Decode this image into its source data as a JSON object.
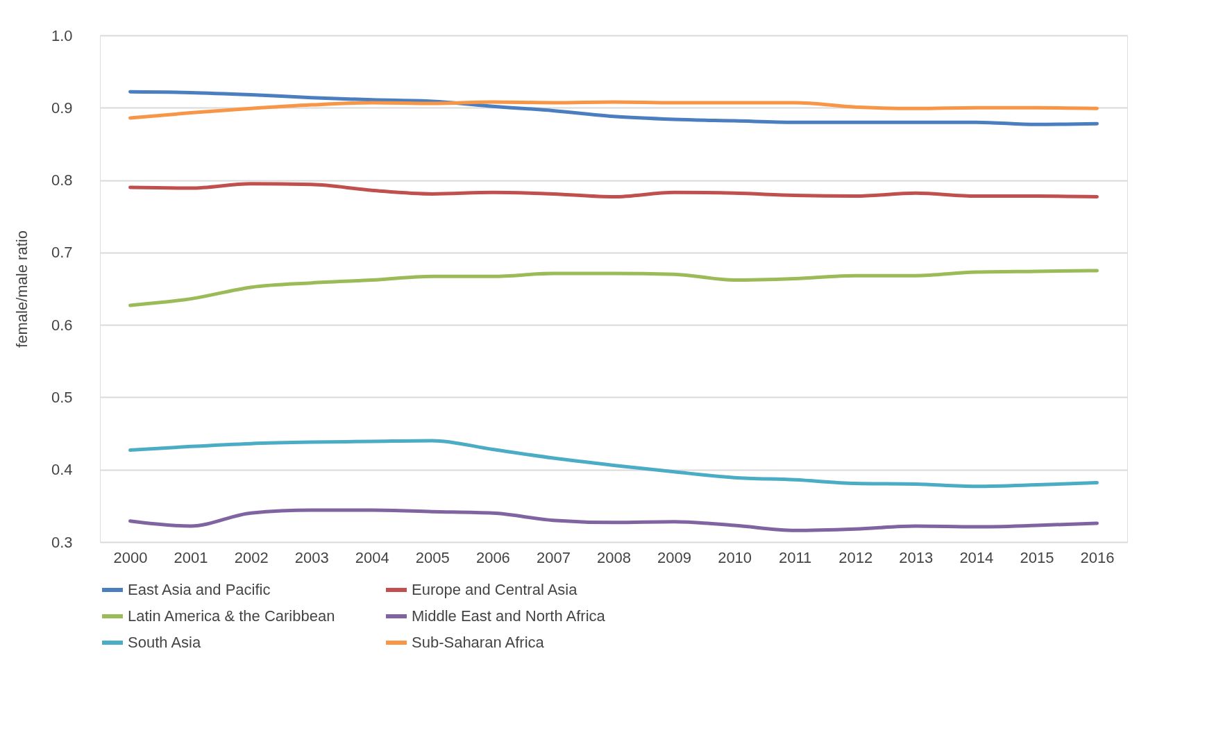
{
  "chart_data": {
    "type": "line",
    "ylabel": "female/male ratio",
    "categories": [
      "2000",
      "2001",
      "2002",
      "2003",
      "2004",
      "2005",
      "2006",
      "2007",
      "2008",
      "2009",
      "2010",
      "2011",
      "2012",
      "2013",
      "2014",
      "2015",
      "2016"
    ],
    "series": [
      {
        "name": "East Asia and Pacific",
        "color": "#4a7ebf",
        "values": [
          0.922,
          0.921,
          0.918,
          0.914,
          0.911,
          0.909,
          0.902,
          0.896,
          0.888,
          0.884,
          0.882,
          0.88,
          0.88,
          0.88,
          0.88,
          0.877,
          0.878
        ]
      },
      {
        "name": "Europe and Central Asia",
        "color": "#c0504d",
        "values": [
          0.79,
          0.789,
          0.795,
          0.794,
          0.786,
          0.781,
          0.783,
          0.781,
          0.777,
          0.783,
          0.782,
          0.779,
          0.778,
          0.782,
          0.778,
          0.778,
          0.777
        ]
      },
      {
        "name": "Latin America & the Caribbean",
        "color": "#9bbb59",
        "values": [
          0.627,
          0.636,
          0.652,
          0.658,
          0.662,
          0.667,
          0.667,
          0.671,
          0.671,
          0.67,
          0.662,
          0.664,
          0.668,
          0.668,
          0.673,
          0.674,
          0.675
        ]
      },
      {
        "name": "Middle East and North Africa",
        "color": "#8064a2",
        "values": [
          0.329,
          0.322,
          0.34,
          0.344,
          0.344,
          0.342,
          0.34,
          0.33,
          0.327,
          0.328,
          0.323,
          0.316,
          0.318,
          0.322,
          0.321,
          0.323,
          0.326
        ]
      },
      {
        "name": "South Asia",
        "color": "#4bacc6",
        "values": [
          0.427,
          0.432,
          0.436,
          0.438,
          0.439,
          0.44,
          0.428,
          0.416,
          0.406,
          0.397,
          0.389,
          0.386,
          0.381,
          0.38,
          0.377,
          0.379,
          0.382
        ]
      },
      {
        "name": "Sub-Saharan Africa",
        "color": "#f79646",
        "values": [
          0.886,
          0.893,
          0.899,
          0.904,
          0.907,
          0.906,
          0.908,
          0.907,
          0.908,
          0.907,
          0.907,
          0.907,
          0.901,
          0.899,
          0.9,
          0.9,
          0.899
        ]
      }
    ],
    "ylim": [
      0.3,
      1.0
    ],
    "yticks": [
      {
        "value": 0.3,
        "label": "0.3"
      },
      {
        "value": 0.4,
        "label": "0.4"
      },
      {
        "value": 0.5,
        "label": "0.5"
      },
      {
        "value": 0.6,
        "label": "0.6"
      },
      {
        "value": 0.7,
        "label": "0.7"
      },
      {
        "value": 0.8,
        "label": "0.8"
      },
      {
        "value": 0.9,
        "label": "0.9"
      },
      {
        "value": 1.0,
        "label": "1.0"
      }
    ],
    "grid": "y",
    "legend": "bottom",
    "marker": "none",
    "line_style": "solid"
  }
}
